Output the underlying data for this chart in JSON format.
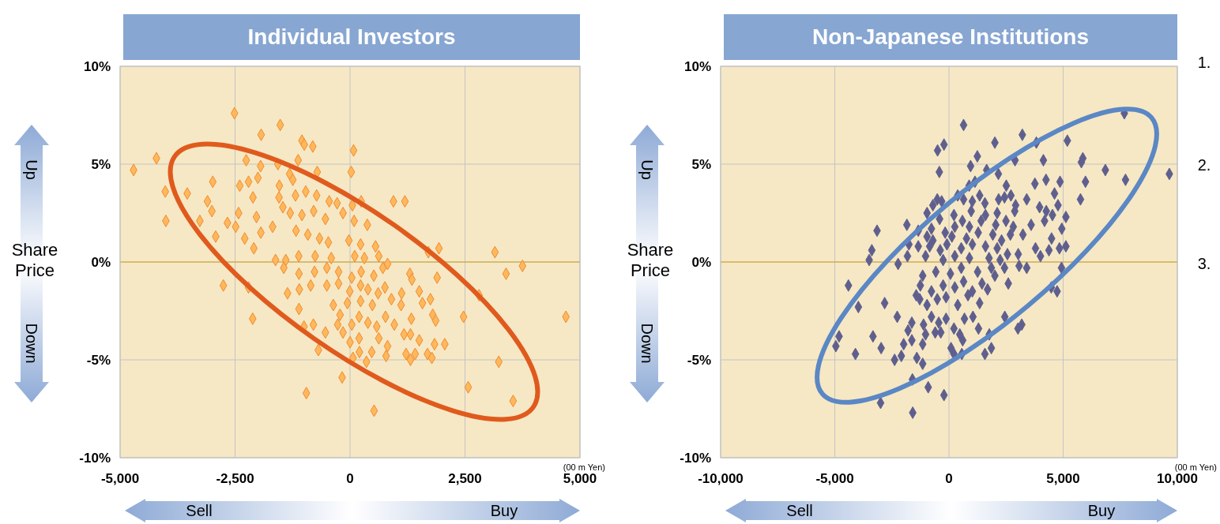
{
  "chart_data": [
    {
      "type": "scatter",
      "title": "Individual Investors",
      "color": "#ffb85c",
      "marker": "diamond",
      "grid": true,
      "xlim": [
        -5000,
        5000
      ],
      "xticks": [
        {
          "value": -5000,
          "label": "-5,000"
        },
        {
          "value": -2500,
          "label": "-2,500"
        },
        0,
        {
          "value": 2500,
          "label": "2,500"
        },
        {
          "value": 5000,
          "label": "5,000"
        }
      ],
      "ylim": [
        -10,
        10
      ],
      "yticks": [
        {
          "value": -10,
          "label": "-10%"
        },
        {
          "value": -5,
          "label": "-5%"
        },
        {
          "value": 0,
          "label": "0%"
        },
        {
          "value": 5,
          "label": "5%"
        },
        {
          "value": 10,
          "label": "10%"
        }
      ],
      "ref_lines": [
        {
          "axis": "y",
          "value": 0,
          "color": "#d4a020"
        }
      ],
      "annotations": [
        "(00 m Yen)",
        "Share Price",
        "Up",
        "Down",
        "Sell",
        "Buy"
      ],
      "x": [
        -2513,
        -1518,
        -1933,
        -1046,
        -995,
        -810,
        77,
        -4210,
        -4707,
        -2258,
        -1569,
        -1129,
        26,
        -714,
        -4018,
        -3540,
        -2985,
        -2398,
        -2207,
        -2003,
        -1945,
        -4005,
        -3266,
        -3100,
        -3004,
        -2921,
        -2666,
        -2487,
        -2424,
        -2290,
        -2111,
        -2035,
        -1939,
        -1684,
        -2092,
        -1537,
        -1314,
        -1244,
        -1544,
        -1461,
        -1186,
        -963,
        -727,
        -453,
        -281,
        242,
        51,
        944,
        1193,
        -1301,
        -1046,
        -791,
        -536,
        -153,
        89,
        376,
        -1174,
        -918,
        -663,
        -472,
        -26,
        230,
        555,
        1703,
        1933,
        3151,
        3750,
        3393,
        -1620,
        -1397,
        -1116,
        -759,
        -408,
        102,
        313,
        625,
        816,
        -1441,
        -1110,
        -772,
        -504,
        -249,
        38,
        242,
        517,
        714,
        1301,
        1346,
        1894,
        -2755,
        -2207,
        -1359,
        -1103,
        -855,
        -504,
        -249,
        -6,
        230,
        389,
        612,
        759,
        1122,
        1505,
        2806,
        -1110,
        -364,
        -57,
        230,
        485,
        900,
        1110,
        1575,
        1748,
        -2117,
        -1001,
        -797,
        -536,
        -268,
        -217,
        38,
        198,
        389,
        581,
        772,
        963,
        1333,
        1799,
        1863,
        2468,
        4694,
        -153,
        198,
        625,
        816,
        1174,
        1314,
        1505,
        1837,
        2060,
        -689,
        0,
        64,
        204,
        357,
        472,
        784,
        1218,
        1314,
        1416,
        1684,
        1779,
        3234,
        -172,
        -950,
        2570,
        3546,
        523
      ],
      "values": [
        7.6,
        7.0,
        6.5,
        6.2,
        6.0,
        5.9,
        5.7,
        5.3,
        4.7,
        5.2,
        5.0,
        5.2,
        4.6,
        4.6,
        3.6,
        3.5,
        4.1,
        3.9,
        4.1,
        4.3,
        4.9,
        2.1,
        2.1,
        3.1,
        2.6,
        1.3,
        2.0,
        1.8,
        2.5,
        1.2,
        3.3,
        2.3,
        1.5,
        1.8,
        0.7,
        3.9,
        4.5,
        4.2,
        3.3,
        2.8,
        3.4,
        3.6,
        3.4,
        3.1,
        3.0,
        3.1,
        2.9,
        3.1,
        3.1,
        2.5,
        2.4,
        2.6,
        2.2,
        2.5,
        2.1,
        1.9,
        1.6,
        1.4,
        1.2,
        1.0,
        1.1,
        0.9,
        0.8,
        0.5,
        0.7,
        0.5,
        -0.2,
        -0.6,
        0.1,
        0.1,
        0.3,
        0.3,
        0.2,
        0.3,
        0.2,
        0.3,
        -0.1,
        -0.3,
        -0.6,
        -0.5,
        -0.3,
        -0.5,
        -0.8,
        -0.5,
        -0.7,
        -0.3,
        -0.6,
        -0.9,
        -0.8,
        -1.2,
        -1.3,
        -1.6,
        -1.4,
        -1.2,
        -1.2,
        -1.1,
        -1.5,
        -1.2,
        -1.4,
        -1.6,
        -1.3,
        -1.6,
        -1.5,
        -1.7,
        -2.4,
        -2.2,
        -2.1,
        -2.0,
        -2.2,
        -1.9,
        -2.2,
        -2.1,
        -1.9,
        -2.9,
        -3.3,
        -3.2,
        -3.6,
        -3.2,
        -2.7,
        -3.2,
        -2.8,
        -3.1,
        -3.3,
        -2.8,
        -3.2,
        -2.9,
        -2.7,
        -3.0,
        -2.8,
        -2.8,
        -3.6,
        -3.9,
        -3.9,
        -4.3,
        -3.7,
        -3.7,
        -4.0,
        -4.2,
        -4.2,
        -4.5,
        -4.1,
        -4.9,
        -4.6,
        -5.1,
        -4.6,
        -4.8,
        -4.7,
        -5.0,
        -4.7,
        -4.7,
        -4.9,
        -5.1,
        -5.9,
        -6.7,
        -6.4,
        -7.1,
        -7.6
      ]
    },
    {
      "type": "scatter",
      "title": "Non-Japanese Institutions",
      "color": "#5f5f8f",
      "marker": "diamond",
      "grid": true,
      "xlim": [
        -10000,
        10000
      ],
      "xticks": [
        {
          "value": -10000,
          "label": "-10,000"
        },
        {
          "value": -5000,
          "label": "-5,000"
        },
        0,
        {
          "value": 5000,
          "label": "5,000"
        },
        {
          "value": 10000,
          "label": "10,000"
        }
      ],
      "ylim": [
        -10,
        10
      ],
      "yticks": [
        {
          "value": -10,
          "label": "-10%"
        },
        {
          "value": -5,
          "label": "-5%"
        },
        {
          "value": 0,
          "label": "0%"
        },
        {
          "value": 5,
          "label": "5%"
        },
        {
          "value": 10,
          "label": "10%"
        }
      ],
      "ref_lines": [
        {
          "axis": "y",
          "value": 0,
          "color": "#d4a020"
        }
      ],
      "annotations": [
        "(00 m Yen)",
        "Share Price",
        "Up",
        "Down",
        "Sell",
        "Buy",
        "1.",
        "2.",
        "3."
      ],
      "x": [
        7680,
        640,
        -499,
        -218,
        3213,
        3827,
        5184,
        2010,
        1242,
        -422,
        947,
        2893,
        4134,
        5862,
        5798,
        6848,
        7731,
        9651,
        1651,
        2163,
        1139,
        883,
        2509,
        3763,
        4250,
        4864,
        5978,
        5760,
        4621,
        4774,
        5120,
        4941,
        5120,
        4838,
        4493,
        4378,
        4006,
        3789,
        3405,
        3968,
        4262,
        4531,
        4186,
        3597,
        3238,
        3034,
        3072,
        3405,
        4928,
        4480,
        4736,
        2598,
        2445,
        3021,
        3187,
        1856,
        1574,
        1766,
        1293,
        1344,
        1050,
        678,
        602,
        474,
        218,
        90,
        218,
        563,
        -218,
        -909,
        -1587,
        -2995,
        -1600,
        -1152,
        -1408,
        -2086,
        -2381,
        -1984,
        -1626,
        -1152,
        -4096,
        -4954,
        -4813,
        -2970,
        -3328,
        -3968,
        -4403,
        -2816,
        -2266,
        -1792,
        -1626,
        -1024,
        -602,
        -358,
        -1114,
        -768,
        -448,
        -128,
        -960,
        -512,
        -128,
        384,
        832,
        -1280,
        -1434,
        -1254,
        -768,
        -256,
        256,
        640,
        1024,
        1446,
        1690,
        2010,
        -1152,
        -576,
        64,
        538,
        1254,
        1856,
        2432,
        -2227,
        -1818,
        -1024,
        -256,
        256,
        896,
        1754,
        2240,
        -3494,
        -3379,
        -3149,
        -1843,
        -1754,
        -1344,
        -845,
        -384,
        538,
        1024,
        1600,
        2112,
        2560,
        -1344,
        -960,
        -704,
        -90,
        128,
        768,
        1280,
        1920,
        2304,
        2688,
        -768,
        -166,
        256,
        896,
        1408,
        2048,
        2496,
        2816,
        -960,
        -410,
        218,
        589,
        973,
        1600,
        2112,
        2880,
        -704,
        -320,
        384,
        640,
        1024,
        1344,
        1574,
        2176,
        2432,
        2714,
        2918,
        -512
      ],
      "values": [
        7.6,
        7.0,
        5.7,
        6.0,
        6.5,
        6.1,
        6.2,
        6.1,
        5.4,
        4.6,
        4.9,
        5.2,
        5.2,
        5.3,
        5.1,
        4.7,
        4.2,
        4.5,
        4.7,
        4.5,
        4.1,
        3.9,
        3.9,
        4.0,
        4.2,
        4.1,
        4.1,
        3.2,
        3.5,
        2.9,
        2.3,
        1.7,
        0.8,
        0.7,
        1.2,
        0.6,
        0.3,
        0.7,
        3.2,
        2.8,
        2.6,
        2.4,
        2.1,
        1.9,
        1.4,
        0.4,
        -0.2,
        -0.3,
        -0.3,
        -1.3,
        -1.5,
        -1.1,
        -2.8,
        -3.4,
        -3.2,
        -4.4,
        -4.7,
        -3.7,
        -3.4,
        -2.1,
        -2.8,
        -2.9,
        -4.0,
        -3.7,
        -3.4,
        -4.4,
        -4.7,
        -4.7,
        -6.8,
        -6.4,
        -7.7,
        -7.2,
        -6.0,
        -5.2,
        -4.9,
        -4.8,
        -5.0,
        -4.2,
        -4.0,
        -4.2,
        -4.7,
        -4.3,
        -3.8,
        -4.4,
        -3.8,
        -2.3,
        -1.2,
        -2.1,
        -2.8,
        -3.5,
        -3.1,
        -3.7,
        -3.6,
        -3.6,
        -3.2,
        -2.8,
        -3.1,
        -2.9,
        -2.2,
        -1.9,
        -1.8,
        -2.2,
        -1.7,
        -1.9,
        -1.7,
        -1.2,
        -1.5,
        -1.2,
        -1.3,
        -1.0,
        -1.5,
        -1.1,
        -1.4,
        -0.7,
        -0.7,
        -0.5,
        -0.6,
        -0.3,
        -0.5,
        -0.3,
        -0.3,
        -0.1,
        0.3,
        0.3,
        0.1,
        0.3,
        0.2,
        0.2,
        0.1,
        0.1,
        0.6,
        1.6,
        1.9,
        0.9,
        0.8,
        0.8,
        0.6,
        0.7,
        0.9,
        0.8,
        0.7,
        0.4,
        1.6,
        1.3,
        1.1,
        0.9,
        1.3,
        1.2,
        1.5,
        1.4,
        1.1,
        1.4,
        1.7,
        1.5,
        1.8,
        1.8,
        2.1,
        1.9,
        2.1,
        1.8,
        2.5,
        2.2,
        2.4,
        2.1,
        2.6,
        2.4,
        2.5,
        2.6,
        2.9,
        3.1,
        3.4,
        3.2,
        3.1,
        3.4,
        3.0,
        3.2,
        3.3,
        3.4,
        2.9,
        3.2
      ]
    }
  ]
}
